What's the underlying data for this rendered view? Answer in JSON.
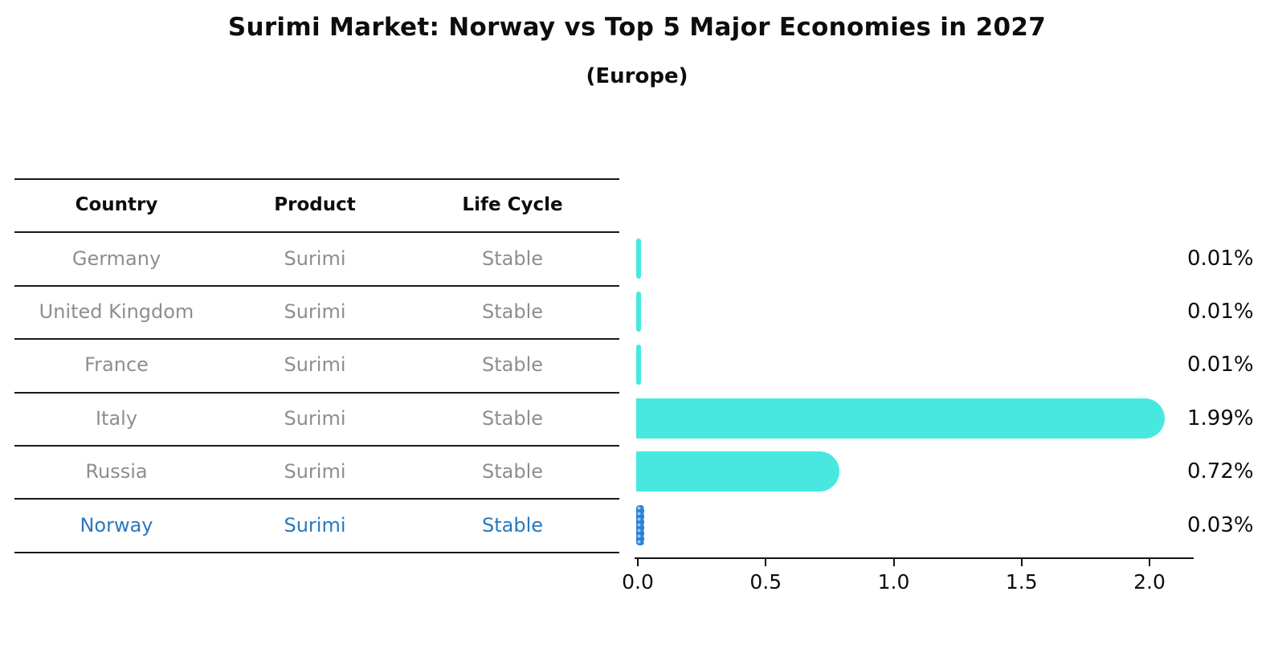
{
  "header": {
    "title": "Surimi Market: Norway vs Top 5 Major Economies in 2027",
    "subtitle": "(Europe)"
  },
  "table": {
    "columns": [
      "Country",
      "Product",
      "Life Cycle"
    ],
    "rows": [
      {
        "country": "Germany",
        "product": "Surimi",
        "life_cycle": "Stable",
        "value": 0.01,
        "value_label": "0.01%",
        "highlight": false
      },
      {
        "country": "United Kingdom",
        "product": "Surimi",
        "life_cycle": "Stable",
        "value": 0.01,
        "value_label": "0.01%",
        "highlight": false
      },
      {
        "country": "France",
        "product": "Surimi",
        "life_cycle": "Stable",
        "value": 0.01,
        "value_label": "0.01%",
        "highlight": false
      },
      {
        "country": "Italy",
        "product": "Surimi",
        "life_cycle": "Stable",
        "value": 1.99,
        "value_label": "1.99%",
        "highlight": false
      },
      {
        "country": "Russia",
        "product": "Surimi",
        "life_cycle": "Stable",
        "value": 0.72,
        "value_label": "0.72%",
        "highlight": false
      },
      {
        "country": "Norway",
        "product": "Surimi",
        "life_cycle": "Stable",
        "value": 0.03,
        "value_label": "0.03%",
        "highlight": true
      }
    ]
  },
  "axis": {
    "tick_labels": [
      "0.0",
      "0.5",
      "1.0",
      "1.5",
      "2.0"
    ],
    "tick_values": [
      0,
      0.5,
      1.0,
      1.5,
      2.0
    ]
  },
  "colors": {
    "bar": "#48e8e0",
    "highlight_bar": "#2b7fd9",
    "highlight_text": "#2878be",
    "row_text": "#8e8e8e",
    "label_text": "#0d0d0d"
  },
  "chart_data": {
    "type": "bar",
    "orientation": "horizontal",
    "title": "Surimi Market: Norway vs Top 5 Major Economies in 2027",
    "subtitle": "(Europe)",
    "categories": [
      "Germany",
      "United Kingdom",
      "France",
      "Italy",
      "Russia",
      "Norway"
    ],
    "values": [
      0.01,
      0.01,
      0.01,
      1.99,
      0.72,
      0.03
    ],
    "value_labels": [
      "0.01%",
      "0.01%",
      "0.01%",
      "1.99%",
      "0.72%",
      "0.03%"
    ],
    "xlabel": "",
    "ylabel": "",
    "xlim": [
      0,
      2.1
    ],
    "xticks": [
      0,
      0.5,
      1.0,
      1.5,
      2.0
    ],
    "grid": false,
    "legend": false,
    "highlight_category": "Norway",
    "table_columns": [
      "Country",
      "Product",
      "Life Cycle"
    ],
    "table_values": [
      [
        "Germany",
        "Surimi",
        "Stable"
      ],
      [
        "United Kingdom",
        "Surimi",
        "Stable"
      ],
      [
        "France",
        "Surimi",
        "Stable"
      ],
      [
        "Italy",
        "Surimi",
        "Stable"
      ],
      [
        "Russia",
        "Surimi",
        "Stable"
      ],
      [
        "Norway",
        "Surimi",
        "Stable"
      ]
    ]
  }
}
